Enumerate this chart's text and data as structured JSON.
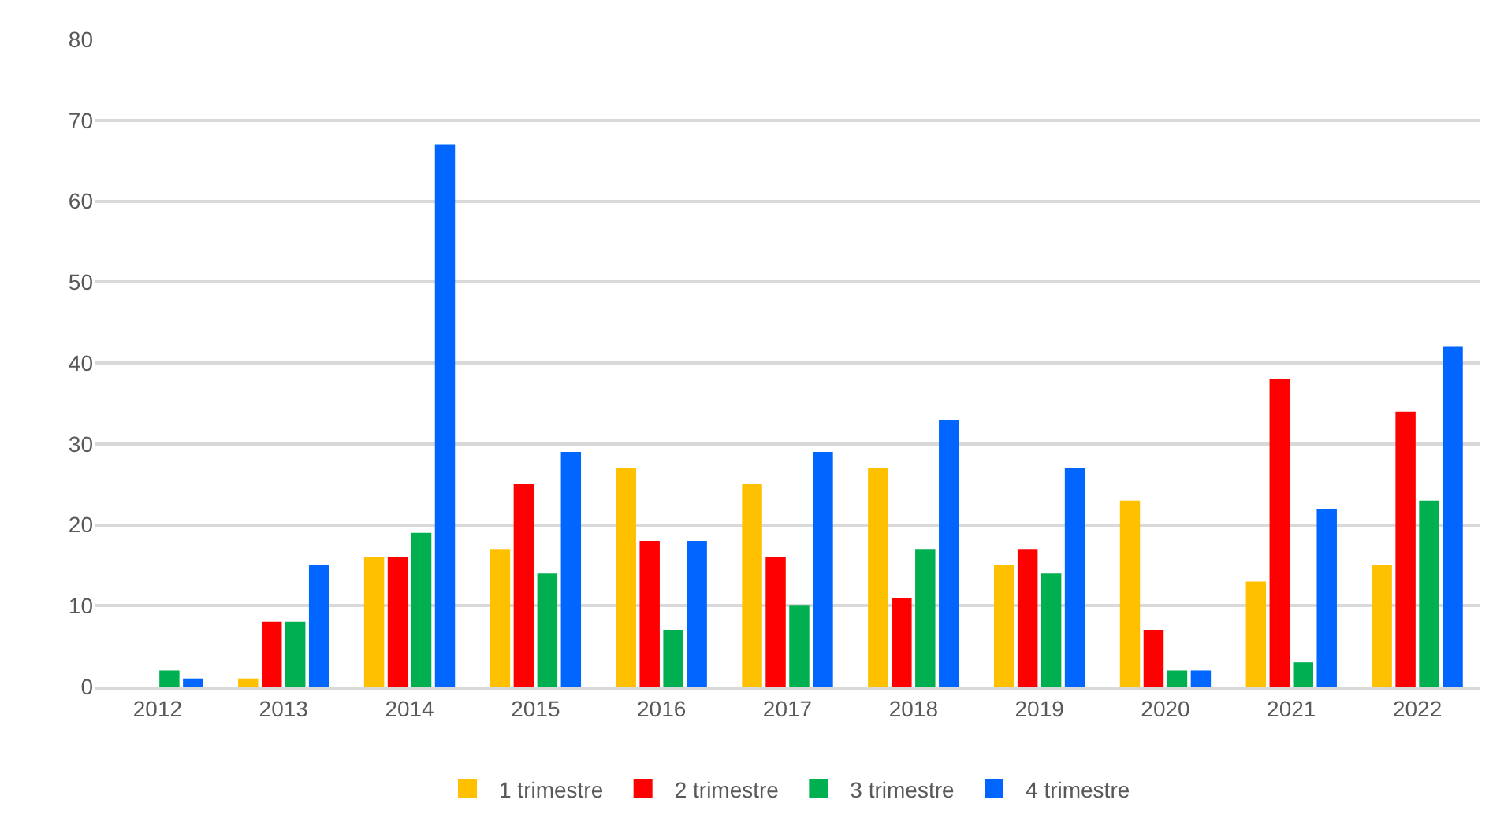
{
  "chart_data": {
    "type": "bar",
    "categories": [
      "2012",
      "2013",
      "2014",
      "2015",
      "2016",
      "2017",
      "2018",
      "2019",
      "2020",
      "2021",
      "2022"
    ],
    "series": [
      {
        "name": "1 trimestre",
        "color": "#ffc000",
        "values": [
          0,
          1,
          16,
          17,
          27,
          25,
          27,
          15,
          23,
          13,
          15
        ]
      },
      {
        "name": "2 trimestre",
        "color": "#ff0000",
        "values": [
          0,
          8,
          16,
          25,
          18,
          16,
          11,
          17,
          7,
          38,
          34
        ]
      },
      {
        "name": "3 trimestre",
        "color": "#00b050",
        "values": [
          2,
          8,
          19,
          14,
          7,
          10,
          17,
          14,
          2,
          3,
          23
        ]
      },
      {
        "name": "4 trimestre",
        "color": "#0066ff",
        "values": [
          1,
          15,
          67,
          29,
          18,
          29,
          33,
          27,
          2,
          22,
          42
        ]
      }
    ],
    "ylim": [
      0,
      80
    ],
    "yticks": [
      0,
      10,
      20,
      30,
      40,
      50,
      60,
      70,
      80
    ],
    "grid": "y",
    "legend": "bottom"
  }
}
